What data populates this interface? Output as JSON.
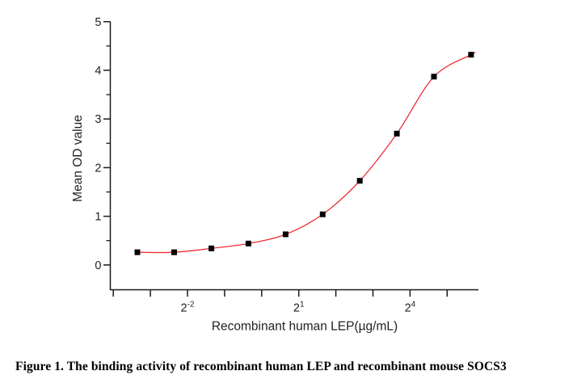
{
  "figure": {
    "caption": "Figure 1. The binding activity of recombinant human LEP and recombinant mouse SOCS3"
  },
  "chart_data": {
    "type": "scatter",
    "title": "",
    "xlabel": "Recombinant human LEP(µg/mL)",
    "ylabel": "Mean OD value",
    "x_scale": "log2",
    "x_unit": "µg/mL",
    "xlim_exponents": [
      -4.1,
      5.85
    ],
    "ylim": [
      -0.5,
      5
    ],
    "grid": "off",
    "legend": "none",
    "x_axis": {
      "tick_exponents": [
        -4,
        -3,
        -2,
        -1,
        0,
        1,
        2,
        3,
        4,
        5
      ],
      "tick_labels": [
        {
          "exponent": -2,
          "base": "2",
          "sup": "-2"
        },
        {
          "exponent": 1,
          "base": "2",
          "sup": "1"
        },
        {
          "exponent": 4,
          "base": "2",
          "sup": "4"
        }
      ]
    },
    "y_axis": {
      "major_ticks": [
        0,
        1,
        2,
        3,
        4,
        5
      ],
      "minor_ticks": [
        0.5,
        1.5,
        2.5,
        3.5,
        4.5
      ]
    },
    "series": [
      {
        "name": "Mean OD value",
        "marker": "filled-square",
        "marker_color": "#000000",
        "line": "none",
        "points": [
          {
            "conc_ug_ml": 0.098,
            "od": 0.26
          },
          {
            "conc_ug_ml": 0.195,
            "od": 0.26
          },
          {
            "conc_ug_ml": 0.391,
            "od": 0.34
          },
          {
            "conc_ug_ml": 0.781,
            "od": 0.44
          },
          {
            "conc_ug_ml": 1.563,
            "od": 0.63
          },
          {
            "conc_ug_ml": 3.125,
            "od": 1.04
          },
          {
            "conc_ug_ml": 6.25,
            "od": 1.73
          },
          {
            "conc_ug_ml": 12.5,
            "od": 2.7
          },
          {
            "conc_ug_ml": 25,
            "od": 3.87
          },
          {
            "conc_ug_ml": 50,
            "od": 4.32
          }
        ]
      }
    ],
    "fit_curve": {
      "type": "4PL-sigmoid-fit",
      "color": "#ee1c25",
      "width": 1.2
    },
    "axis_color": "#1a1a1a",
    "text_color": "#1f1f1f"
  }
}
